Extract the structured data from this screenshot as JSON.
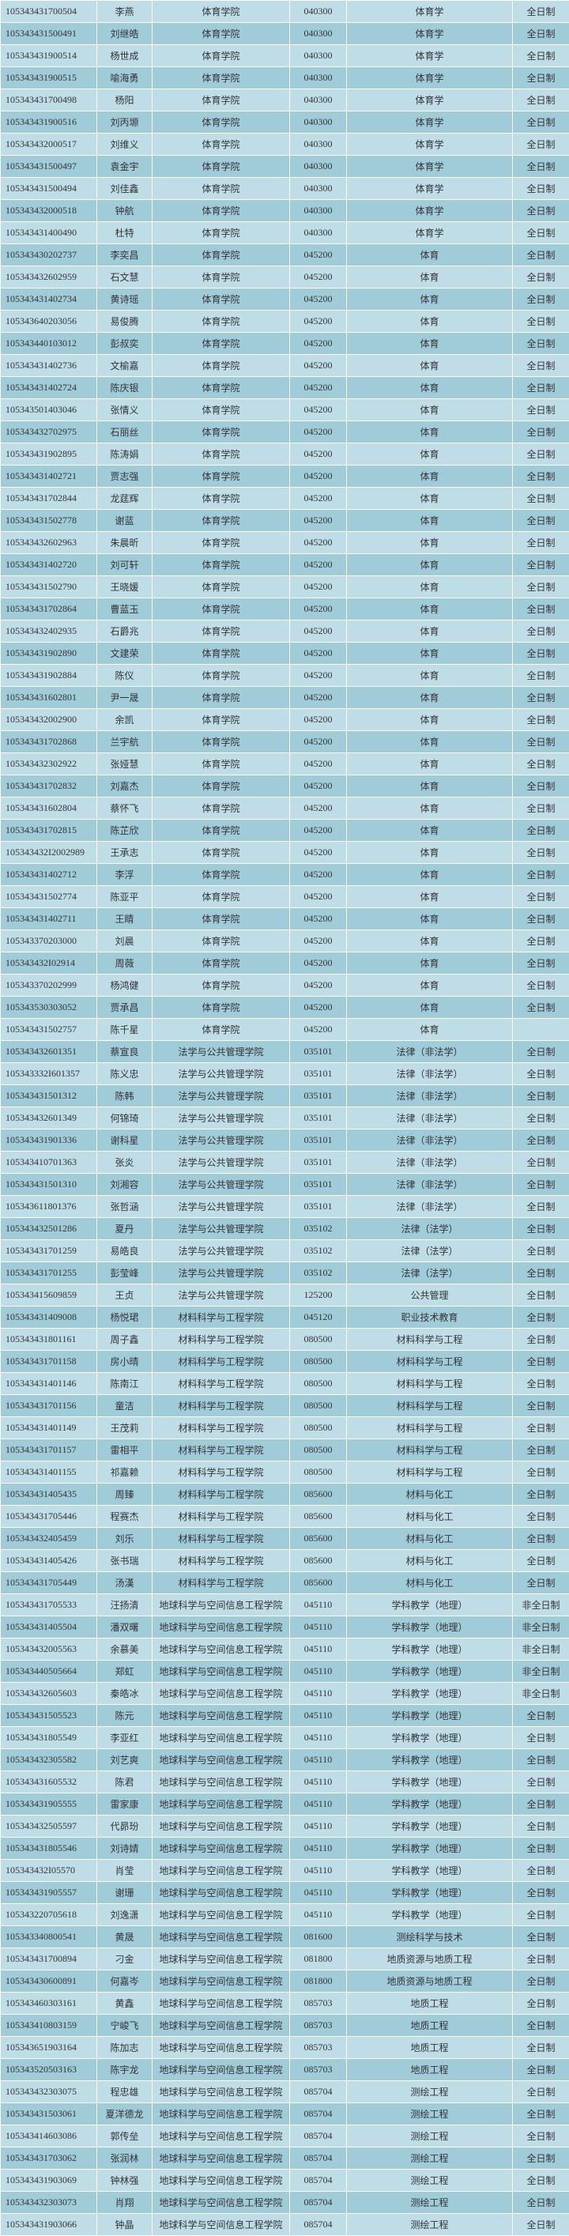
{
  "colors": {
    "rowA": "#bedde7",
    "rowB": "#a0cbd9",
    "text": "#333333"
  },
  "columns": [
    "id",
    "name",
    "dept",
    "code",
    "major",
    "mode"
  ],
  "rows": [
    [
      "105343431700504",
      "李燕",
      "体育学院",
      "040300",
      "体育学",
      "全日制"
    ],
    [
      "105343431500491",
      "刘继皓",
      "体育学院",
      "040300",
      "体育学",
      "全日制"
    ],
    [
      "105343431900514",
      "杨世成",
      "体育学院",
      "040300",
      "体育学",
      "全日制"
    ],
    [
      "105343431900515",
      "喻海勇",
      "体育学院",
      "040300",
      "体育学",
      "全日制"
    ],
    [
      "105343431700498",
      "杨阳",
      "体育学院",
      "040300",
      "体育学",
      "全日制"
    ],
    [
      "105343431900516",
      "刘丙塬",
      "体育学院",
      "040300",
      "体育学",
      "全日制"
    ],
    [
      "105343432000517",
      "刘维义",
      "体育学院",
      "040300",
      "体育学",
      "全日制"
    ],
    [
      "105343431500497",
      "袁金宇",
      "体育学院",
      "040300",
      "体育学",
      "全日制"
    ],
    [
      "105343431500494",
      "刘佳鑫",
      "体育学院",
      "040300",
      "体育学",
      "全日制"
    ],
    [
      "105343432000518",
      "钟航",
      "体育学院",
      "040300",
      "体育学",
      "全日制"
    ],
    [
      "105343431400490",
      "杜特",
      "体育学院",
      "040300",
      "体育学",
      "全日制"
    ],
    [
      "105343430202737",
      "李奕昌",
      "体育学院",
      "045200",
      "体育",
      "全日制"
    ],
    [
      "105343432602959",
      "石文慧",
      "体育学院",
      "045200",
      "体育",
      "全日制"
    ],
    [
      "105343431402734",
      "黄诗瑶",
      "体育学院",
      "045200",
      "体育",
      "全日制"
    ],
    [
      "105343640203056",
      "易俊腾",
      "体育学院",
      "045200",
      "体育",
      "全日制"
    ],
    [
      "105343440103012",
      "彭叔奕",
      "体育学院",
      "045200",
      "体育",
      "全日制"
    ],
    [
      "105343431402736",
      "文榆嘉",
      "体育学院",
      "045200",
      "体育",
      "全日制"
    ],
    [
      "105343431402724",
      "陈庆银",
      "体育学院",
      "045200",
      "体育",
      "全日制"
    ],
    [
      "105343501403046",
      "张情义",
      "体育学院",
      "045200",
      "体育",
      "全日制"
    ],
    [
      "105343432702975",
      "石丽丝",
      "体育学院",
      "045200",
      "体育",
      "全日制"
    ],
    [
      "105343431902895",
      "陈涛娟",
      "体育学院",
      "045200",
      "体育",
      "全日制"
    ],
    [
      "105343431402721",
      "贾志强",
      "体育学院",
      "045200",
      "体育",
      "全日制"
    ],
    [
      "105343431702844",
      "龙莛辉",
      "体育学院",
      "045200",
      "体育",
      "全日制"
    ],
    [
      "105343431502778",
      "谢蓝",
      "体育学院",
      "045200",
      "体育",
      "全日制"
    ],
    [
      "105343432602963",
      "朱晨昕",
      "体育学院",
      "045200",
      "体育",
      "全日制"
    ],
    [
      "105343431402720",
      "刘可轩",
      "体育学院",
      "045200",
      "体育",
      "全日制"
    ],
    [
      "105343431502790",
      "王晓媛",
      "体育学院",
      "045200",
      "体育",
      "全日制"
    ],
    [
      "105343431702864",
      "曹蓝玉",
      "体育学院",
      "045200",
      "体育",
      "全日制"
    ],
    [
      "105343432402935",
      "石爵兆",
      "体育学院",
      "045200",
      "体育",
      "全日制"
    ],
    [
      "105343431902890",
      "文建荣",
      "体育学院",
      "045200",
      "体育",
      "全日制"
    ],
    [
      "105343431902884",
      "陈仪",
      "体育学院",
      "045200",
      "体育",
      "全日制"
    ],
    [
      "105343431602801",
      "尹一晟",
      "体育学院",
      "045200",
      "体育",
      "全日制"
    ],
    [
      "105343432002900",
      "余凯",
      "体育学院",
      "045200",
      "体育",
      "全日制"
    ],
    [
      "105343431702868",
      "兰宇航",
      "体育学院",
      "045200",
      "体育",
      "全日制"
    ],
    [
      "105343432302922",
      "张娅慧",
      "体育学院",
      "045200",
      "体育",
      "全日制"
    ],
    [
      "105343431702832",
      "刘嘉杰",
      "体育学院",
      "045200",
      "体育",
      "全日制"
    ],
    [
      "105343431602804",
      "蔡怀飞",
      "体育学院",
      "045200",
      "体育",
      "全日制"
    ],
    [
      "105343431702815",
      "陈芷欣",
      "体育学院",
      "045200",
      "体育",
      "全日制"
    ],
    [
      "105343432I2002989",
      "王承志",
      "体育学院",
      "045200",
      "体育",
      "全日制"
    ],
    [
      "105343431402712",
      "李浮",
      "体育学院",
      "045200",
      "体育",
      "全日制"
    ],
    [
      "105343431502774",
      "陈亚平",
      "体育学院",
      "045200",
      "体育",
      "全日制"
    ],
    [
      "105343431402711",
      "王睛",
      "体育学院",
      "045200",
      "体育",
      "全日制"
    ],
    [
      "105343370203000",
      "刘晨",
      "体育学院",
      "045200",
      "体育",
      "全日制"
    ],
    [
      "105343432I02914",
      "周薇",
      "体育学院",
      "045200",
      "体育",
      "全日制"
    ],
    [
      "105343370202999",
      "杨鸿健",
      "体育学院",
      "045200",
      "体育",
      "全日制"
    ],
    [
      "105343530303052",
      "贾承昌",
      "体育学院",
      "045200",
      "体育",
      "全日制"
    ],
    [
      "105343431502757",
      "陈千星",
      "体育学院",
      "045200",
      "体育",
      ""
    ],
    [
      "105343432601351",
      "蔡宣良",
      "法学与公共管理学院",
      "035101",
      "法律（非法学）",
      "全日制"
    ],
    [
      "105343332I601357",
      "陈义忠",
      "法学与公共管理学院",
      "035101",
      "法律（非法学）",
      "全日制"
    ],
    [
      "105343431501312",
      "陈韩",
      "法学与公共管理学院",
      "035101",
      "法律（非法学）",
      "全日制"
    ],
    [
      "105343432601349",
      "何锦琦",
      "法学与公共管理学院",
      "035101",
      "法律（非法学）",
      "全日制"
    ],
    [
      "105343431901336",
      "谢科星",
      "法学与公共管理学院",
      "035101",
      "法律（非法学）",
      "全日制"
    ],
    [
      "105343410701363",
      "张炎",
      "法学与公共管理学院",
      "035101",
      "法律（非法学）",
      "全日制"
    ],
    [
      "105343431501310",
      "刘湘容",
      "法学与公共管理学院",
      "035101",
      "法律（非法学）",
      "全日制"
    ],
    [
      "105343611801376",
      "张哲涵",
      "法学与公共管理学院",
      "035101",
      "法律（非法学）",
      "全日制"
    ],
    [
      "105343432501286",
      "夏丹",
      "法学与公共管理学院",
      "035102",
      "法律（法学）",
      "全日制"
    ],
    [
      "105343431701259",
      "易皓良",
      "法学与公共管理学院",
      "035102",
      "法律（法学）",
      "全日制"
    ],
    [
      "105343431701255",
      "彭莹峰",
      "法学与公共管理学院",
      "035102",
      "法律（法学）",
      "全日制"
    ],
    [
      "105343415609859",
      "王贞",
      "法学与公共管理学院",
      "125200",
      "公共管理",
      "全日制"
    ],
    [
      "105343431409008",
      "杨悦珺",
      "材料科学与工程学院",
      "045120",
      "职业技术教育",
      "全日制"
    ],
    [
      "105343431801161",
      "周子鑫",
      "材料科学与工程学院",
      "080500",
      "材料科学与工程",
      "全日制"
    ],
    [
      "105343431701158",
      "房小晴",
      "材料科学与工程学院",
      "080500",
      "材料科学与工程",
      "全日制"
    ],
    [
      "105343431401146",
      "陈南江",
      "材料科学与工程学院",
      "080500",
      "材料科学与工程",
      "全日制"
    ],
    [
      "105343431701156",
      "童洁",
      "材料科学与工程学院",
      "080500",
      "材料科学与工程",
      "全日制"
    ],
    [
      "105343431401149",
      "王茂莉",
      "材料科学与工程学院",
      "080500",
      "材料科学与工程",
      "全日制"
    ],
    [
      "105343431701157",
      "雷相平",
      "材料科学与工程学院",
      "080500",
      "材料科学与工程",
      "全日制"
    ],
    [
      "105343431401155",
      "祁嘉赖",
      "材料科学与工程学院",
      "080500",
      "材料科学与工程",
      "全日制"
    ],
    [
      "105343431405435",
      "周臻",
      "材料科学与工程学院",
      "085600",
      "材料与化工",
      "全日制"
    ],
    [
      "105343431705446",
      "程赛杰",
      "材料科学与工程学院",
      "085600",
      "材料与化工",
      "全日制"
    ],
    [
      "105343432405459",
      "刘乐",
      "材料科学与工程学院",
      "085600",
      "材料与化工",
      "全日制"
    ],
    [
      "105343431405426",
      "张书瑞",
      "材料科学与工程学院",
      "085600",
      "材料与化工",
      "全日制"
    ],
    [
      "105343431705449",
      "汤漢",
      "材料科学与工程学院",
      "085600",
      "材料与化工",
      "全日制"
    ],
    [
      "105343431705533",
      "汪扬清",
      "地球科学与空间信息工程学院",
      "045110",
      "学科教学（地理）",
      "非全日制"
    ],
    [
      "105343431405504",
      "潘双曙",
      "地球科学与空间信息工程学院",
      "045110",
      "学科教学（地理）",
      "非全日制"
    ],
    [
      "105343432005563",
      "余慕美",
      "地球科学与空间信息工程学院",
      "045110",
      "学科教学（地理）",
      "非全日制"
    ],
    [
      "105343440505664",
      "郑虹",
      "地球科学与空间信息工程学院",
      "045110",
      "学科教学（地理）",
      "非全日制"
    ],
    [
      "105343432605603",
      "秦皓冰",
      "地球科学与空间信息工程学院",
      "045110",
      "学科教学（地理）",
      "非全日制"
    ],
    [
      "105343431505523",
      "陈元",
      "地球科学与空间信息工程学院",
      "045110",
      "学科教学（地理）",
      "全日制"
    ],
    [
      "105343431805549",
      "李亚红",
      "地球科学与空间信息工程学院",
      "045110",
      "学科教学（地理）",
      "全日制"
    ],
    [
      "105343432305582",
      "刘艺爽",
      "地球科学与空间信息工程学院",
      "045110",
      "学科教学（地理）",
      "全日制"
    ],
    [
      "105343431605532",
      "陈君",
      "地球科学与空间信息工程学院",
      "045110",
      "学科教学（地理）",
      "全日制"
    ],
    [
      "105343431905555",
      "雷家康",
      "地球科学与空间信息工程学院",
      "045110",
      "学科教学（地理）",
      "全日制"
    ],
    [
      "105343432505597",
      "代昴玢",
      "地球科学与空间信息工程学院",
      "045110",
      "学科教学（地理）",
      "全日制"
    ],
    [
      "105343431805546",
      "刘诗婧",
      "地球科学与空间信息工程学院",
      "045110",
      "学科教学（地理）",
      "全日制"
    ],
    [
      "105343432I05570",
      "肖莹",
      "地球科学与空间信息工程学院",
      "045110",
      "学科教学（地理）",
      "全日制"
    ],
    [
      "105343431905557",
      "谢珊",
      "地球科学与空间信息工程学院",
      "045110",
      "学科教学（地理）",
      "全日制"
    ],
    [
      "105343220705618",
      "刘逸潇",
      "地球科学与空间信息工程学院",
      "045110",
      "学科教学（地理）",
      "全日制"
    ],
    [
      "105343340800541",
      "黄晟",
      "地球科学与空间信息工程学院",
      "081600",
      "测绘科学与技术",
      "全日制"
    ],
    [
      "105343431700894",
      "刁金",
      "地球科学与空间信息工程学院",
      "081800",
      "地质资源与地质工程",
      "全日制"
    ],
    [
      "105343430600891",
      "何嘉岑",
      "地球科学与空间信息工程学院",
      "081800",
      "地质资源与地质工程",
      "全日制"
    ],
    [
      "105343460303161",
      "黄鑫",
      "地球科学与空间信息工程学院",
      "085703",
      "地质工程",
      "全日制"
    ],
    [
      "105343410803159",
      "宁峻飞",
      "地球科学与空间信息工程学院",
      "085703",
      "地质工程",
      "全日制"
    ],
    [
      "105343651903164",
      "陈加志",
      "地球科学与空间信息工程学院",
      "085703",
      "地质工程",
      "全日制"
    ],
    [
      "105343520503163",
      "陈宇龙",
      "地球科学与空间信息工程学院",
      "085703",
      "地质工程",
      "全日制"
    ],
    [
      "105343432303075",
      "程忠雄",
      "地球科学与空间信息工程学院",
      "085704",
      "测绘工程",
      "全日制"
    ],
    [
      "105343431503061",
      "夏洋德龙",
      "地球科学与空间信息工程学院",
      "085704",
      "测绘工程",
      "全日制"
    ],
    [
      "105343414603086",
      "郭传垒",
      "地球科学与空间信息工程学院",
      "085704",
      "测绘工程",
      "全日制"
    ],
    [
      "105343431703062",
      "张润林",
      "地球科学与空间信息工程学院",
      "085704",
      "测绘工程",
      "全日制"
    ],
    [
      "105343431903069",
      "钟林强",
      "地球科学与空间信息工程学院",
      "085704",
      "测绘工程",
      "全日制"
    ],
    [
      "105343432303073",
      "肖翔",
      "地球科学与空间信息工程学院",
      "085704",
      "测绘工程",
      "全日制"
    ],
    [
      "105343431903066",
      "钟晶",
      "地球科学与空间信息工程学院",
      "085704",
      "测绘工程",
      "全日制"
    ]
  ]
}
